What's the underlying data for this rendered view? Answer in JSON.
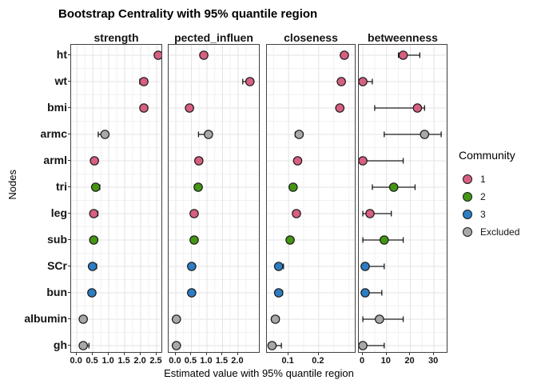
{
  "chart_data": {
    "type": "scatter",
    "title": "Bootstrap Centrality with 95% quantile region",
    "xlabel": "Estimated value with 95% quantile region",
    "ylabel": "Nodes",
    "grid": true,
    "categories": [
      "ht",
      "wt",
      "bmi",
      "armc",
      "arml",
      "tri",
      "leg",
      "sub",
      "SCr",
      "bun",
      "albumin",
      "gh"
    ],
    "communities": [
      "1",
      "1",
      "1",
      "Excluded",
      "1",
      "2",
      "1",
      "2",
      "3",
      "3",
      "Excluded",
      "Excluded"
    ],
    "legend": {
      "title": "Community",
      "position": "right",
      "entries": [
        {
          "label": "1",
          "color": "#d75f80"
        },
        {
          "label": "2",
          "color": "#449612"
        },
        {
          "label": "3",
          "color": "#2d7dc3"
        },
        {
          "label": "Excluded",
          "color": "#a8a8a8"
        }
      ]
    },
    "facets": [
      {
        "label": "strength",
        "xlim": [
          -0.18,
          2.7
        ],
        "ticks": [
          0,
          0.5,
          1,
          1.5,
          2,
          2.5
        ],
        "tick_labels": [
          "0.0",
          "0.5",
          "1.0",
          "1.5",
          "2.0",
          "2.5"
        ],
        "minor_ticks": [
          0.25,
          0.75,
          1.25,
          1.75,
          2.25
        ],
        "points": [
          {
            "node": "ht",
            "est": 2.55,
            "lo": 2.55,
            "hi": 2.55
          },
          {
            "node": "wt",
            "est": 2.1,
            "lo": 1.97,
            "hi": 2.15
          },
          {
            "node": "bmi",
            "est": 2.1,
            "lo": 2.06,
            "hi": 2.13
          },
          {
            "node": "armc",
            "est": 0.88,
            "lo": 0.67,
            "hi": 0.92
          },
          {
            "node": "arml",
            "est": 0.55,
            "lo": 0.53,
            "hi": 0.65
          },
          {
            "node": "tri",
            "est": 0.59,
            "lo": 0.55,
            "hi": 0.72
          },
          {
            "node": "leg",
            "est": 0.53,
            "lo": 0.5,
            "hi": 0.66
          },
          {
            "node": "sub",
            "est": 0.53,
            "lo": 0.52,
            "hi": 0.55
          },
          {
            "node": "SCr",
            "est": 0.49,
            "lo": 0.46,
            "hi": 0.62
          },
          {
            "node": "bun",
            "est": 0.47,
            "lo": 0.45,
            "hi": 0.5
          },
          {
            "node": "albumin",
            "est": 0.2,
            "lo": 0.1,
            "hi": 0.3
          },
          {
            "node": "gh",
            "est": 0.2,
            "lo": 0.16,
            "hi": 0.38
          }
        ]
      },
      {
        "label": "pected_influen",
        "xlim": [
          -0.23,
          2.72
        ],
        "ticks": [
          0,
          0.5,
          1,
          1.5,
          2
        ],
        "tick_labels": [
          "0.0",
          "0.5",
          "1.0",
          "1.5",
          "2.0"
        ],
        "minor_ticks": [
          0.25,
          0.75,
          1.25,
          1.75,
          2.25
        ],
        "points": [
          {
            "node": "ht",
            "est": 0.9,
            "lo": 0.9,
            "hi": 0.9
          },
          {
            "node": "wt",
            "est": 2.38,
            "lo": 2.15,
            "hi": 2.42
          },
          {
            "node": "bmi",
            "est": 0.44,
            "lo": 0.4,
            "hi": 0.55
          },
          {
            "node": "armc",
            "est": 1.05,
            "lo": 0.73,
            "hi": 1.1
          },
          {
            "node": "arml",
            "est": 0.74,
            "lo": 0.7,
            "hi": 0.85
          },
          {
            "node": "tri",
            "est": 0.72,
            "lo": 0.6,
            "hi": 0.76
          },
          {
            "node": "leg",
            "est": 0.59,
            "lo": 0.57,
            "hi": 0.61
          },
          {
            "node": "sub",
            "est": 0.59,
            "lo": 0.57,
            "hi": 0.61
          },
          {
            "node": "SCr",
            "est": 0.51,
            "lo": 0.42,
            "hi": 0.6
          },
          {
            "node": "bun",
            "est": 0.51,
            "lo": 0.48,
            "hi": 0.54
          },
          {
            "node": "albumin",
            "est": 0.02,
            "lo": 0.0,
            "hi": 0.07
          },
          {
            "node": "gh",
            "est": 0.02,
            "lo": 0.0,
            "hi": 0.1
          }
        ]
      },
      {
        "label": "closeness",
        "xlim": [
          0.028,
          0.325
        ],
        "ticks": [
          0.1,
          0.2
        ],
        "tick_labels": [
          "0.1",
          "0.2"
        ],
        "minor_ticks": [
          0.05,
          0.15,
          0.25,
          0.3
        ],
        "points": [
          {
            "node": "ht",
            "est": 0.285,
            "lo": 0.285,
            "hi": 0.285
          },
          {
            "node": "wt",
            "est": 0.275,
            "lo": 0.275,
            "hi": 0.275
          },
          {
            "node": "bmi",
            "est": 0.27,
            "lo": 0.27,
            "hi": 0.27
          },
          {
            "node": "armc",
            "est": 0.135,
            "lo": 0.122,
            "hi": 0.14
          },
          {
            "node": "arml",
            "est": 0.13,
            "lo": 0.126,
            "hi": 0.14
          },
          {
            "node": "tri",
            "est": 0.115,
            "lo": 0.11,
            "hi": 0.12
          },
          {
            "node": "leg",
            "est": 0.126,
            "lo": 0.122,
            "hi": 0.13
          },
          {
            "node": "sub",
            "est": 0.105,
            "lo": 0.1,
            "hi": 0.115
          },
          {
            "node": "SCr",
            "est": 0.067,
            "lo": 0.06,
            "hi": 0.083
          },
          {
            "node": "bun",
            "est": 0.067,
            "lo": 0.06,
            "hi": 0.08
          },
          {
            "node": "albumin",
            "est": 0.056,
            "lo": 0.044,
            "hi": 0.068
          },
          {
            "node": "gh",
            "est": 0.045,
            "lo": 0.04,
            "hi": 0.076
          }
        ]
      },
      {
        "label": "betweenness",
        "xlim": [
          -1.7,
          36
        ],
        "ticks": [
          0,
          10,
          20,
          30
        ],
        "tick_labels": [
          "0",
          "10",
          "20",
          "30"
        ],
        "minor_ticks": [
          5,
          15,
          25,
          35
        ],
        "points": [
          {
            "node": "ht",
            "est": 17,
            "lo": 15,
            "hi": 24
          },
          {
            "node": "wt",
            "est": 0,
            "lo": 0,
            "hi": 4
          },
          {
            "node": "bmi",
            "est": 23,
            "lo": 5,
            "hi": 26
          },
          {
            "node": "armc",
            "est": 26,
            "lo": 9,
            "hi": 33
          },
          {
            "node": "arml",
            "est": 0,
            "lo": 0,
            "hi": 17
          },
          {
            "node": "tri",
            "est": 13,
            "lo": 4,
            "hi": 22
          },
          {
            "node": "leg",
            "est": 3,
            "lo": 0,
            "hi": 12
          },
          {
            "node": "sub",
            "est": 9,
            "lo": 0,
            "hi": 17
          },
          {
            "node": "SCr",
            "est": 1,
            "lo": 0,
            "hi": 9
          },
          {
            "node": "bun",
            "est": 1,
            "lo": 0,
            "hi": 8
          },
          {
            "node": "albumin",
            "est": 7,
            "lo": 0,
            "hi": 17
          },
          {
            "node": "gh",
            "est": 0,
            "lo": 0,
            "hi": 9
          }
        ]
      }
    ]
  }
}
